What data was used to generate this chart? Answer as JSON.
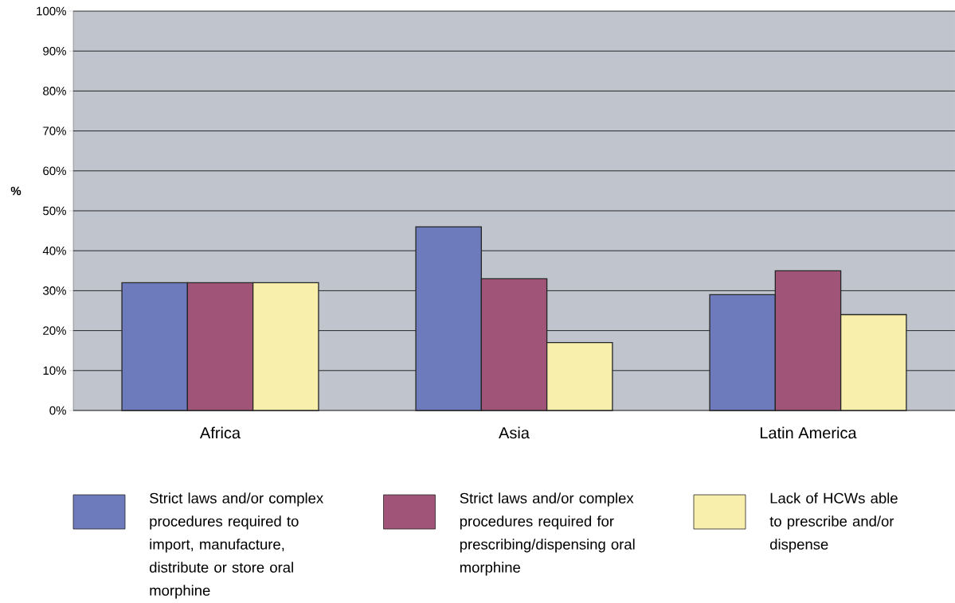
{
  "chart_data": {
    "type": "bar",
    "ylabel": "%",
    "categories": [
      "Africa",
      "Asia",
      "Latin America"
    ],
    "series": [
      {
        "name": "Strict laws and/or complex procedures required to import, manufacture, distribute or store oral morphine",
        "color": "#6d7bbc",
        "values": [
          32,
          46,
          29
        ]
      },
      {
        "name": "Strict laws and/or complex procedures required for prescribing/dispensing oral morphine",
        "color": "#a05477",
        "values": [
          32,
          33,
          35
        ]
      },
      {
        "name": "Lack of HCWs able to prescribe and/or dispense",
        "color": "#f9efac",
        "values": [
          32,
          17,
          24
        ]
      }
    ],
    "ylim": [
      0,
      100
    ],
    "yticks": [
      {
        "value": 0,
        "label": "0%"
      },
      {
        "value": 10,
        "label": "10%"
      },
      {
        "value": 20,
        "label": "20%"
      },
      {
        "value": 30,
        "label": "30%"
      },
      {
        "value": 40,
        "label": "40%"
      },
      {
        "value": 50,
        "label": "50%"
      },
      {
        "value": 60,
        "label": "60%"
      },
      {
        "value": 70,
        "label": "70%"
      },
      {
        "value": 80,
        "label": "80%"
      },
      {
        "value": 90,
        "label": "90%"
      },
      {
        "value": 100,
        "label": "100%"
      }
    ],
    "grid": "y",
    "legend": "bottom"
  }
}
